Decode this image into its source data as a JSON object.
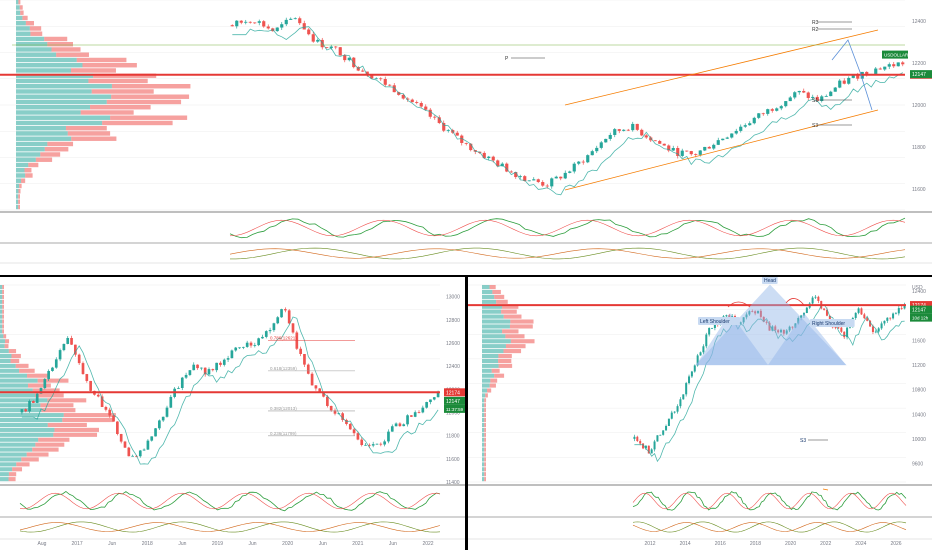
{
  "colors": {
    "up": "#26a69a",
    "down": "#ef5350",
    "level": "#e53935",
    "channel": "#f57c00",
    "pattern": "#90b4e8",
    "grid": "#eeeeee",
    "axis_text": "#787b86"
  },
  "chart_data": [
    {
      "type": "candlestick",
      "pane": "top",
      "indicators": [
        "volume-profile",
        "rsi",
        "macd"
      ],
      "price_axis": [
        "11600",
        "11800",
        "12000",
        "12200",
        "12400"
      ],
      "price_labels": {
        "current": "12147",
        "level": "12144",
        "upper": "USDOLLAR"
      },
      "pivot_labels": [
        "R3",
        "R2",
        "P",
        "S1",
        "S3"
      ],
      "ylim": [
        11500,
        12500
      ],
      "series": [
        {
          "name": "",
          "values": [
            12380,
            12410,
            12350,
            12420,
            12300,
            12260,
            12180,
            12120,
            12060,
            11980,
            11900,
            11820,
            11760,
            11700,
            11650,
            11620,
            11680,
            11760,
            11860,
            11900,
            11840,
            11780,
            11760,
            11820,
            11880,
            11940,
            12000,
            12060,
            12020,
            12100,
            12150,
            12180,
            12200
          ]
        }
      ]
    },
    {
      "type": "candlestick",
      "pane": "bottom-left",
      "indicators": [
        "volume-profile",
        "rsi",
        "macd"
      ],
      "x_ticks": [
        "Aug",
        "2017",
        "Jun",
        "2018",
        "Jun",
        "2019",
        "Jun",
        "2020",
        "Jun",
        "2021",
        "Jun",
        "2022"
      ],
      "price_axis": [
        "11400",
        "11600",
        "11800",
        "12000",
        "12200",
        "12400",
        "12600",
        "12800",
        "13000"
      ],
      "price_labels": {
        "level": "12174",
        "current": "12147",
        "countdown": "11:37:59"
      },
      "fib_labels": [
        "0.786(12621)",
        "0.618(12359)",
        "0.382(12013)",
        "0.236(11799)"
      ],
      "ylim": [
        11400,
        13100
      ],
      "series": [
        {
          "name": "",
          "values": [
            12000,
            12150,
            12400,
            12650,
            12300,
            12100,
            11900,
            11600,
            11700,
            11950,
            12200,
            12400,
            12350,
            12450,
            12550,
            12600,
            12700,
            12950,
            12500,
            12200,
            12050,
            11900,
            11750,
            11700,
            11850,
            11950,
            12050,
            12147
          ]
        }
      ]
    },
    {
      "type": "candlestick",
      "pane": "bottom-right",
      "indicators": [
        "volume-profile",
        "rsi",
        "macd"
      ],
      "x_ticks": [
        "2012",
        "2014",
        "2016",
        "2018",
        "2020",
        "2022",
        "2024",
        "2026"
      ],
      "price_axis": [
        "9600",
        "10000",
        "10400",
        "10800",
        "11200",
        "11600",
        "12000",
        "12400"
      ],
      "price_labels": {
        "level": "12174",
        "current": "12147",
        "countdown": "10d 12h"
      },
      "annotations": [
        "Left Shoulder",
        "Head",
        "Right Shoulder",
        "S3"
      ],
      "currency": "USD",
      "ylim": [
        9300,
        12500
      ],
      "series": [
        {
          "name": "",
          "values": [
            10000,
            9800,
            10200,
            10600,
            11200,
            11800,
            12000,
            11900,
            12100,
            11800,
            11700,
            12000,
            12300,
            11900,
            11700,
            12100,
            11750,
            12000,
            12147
          ]
        }
      ]
    }
  ]
}
